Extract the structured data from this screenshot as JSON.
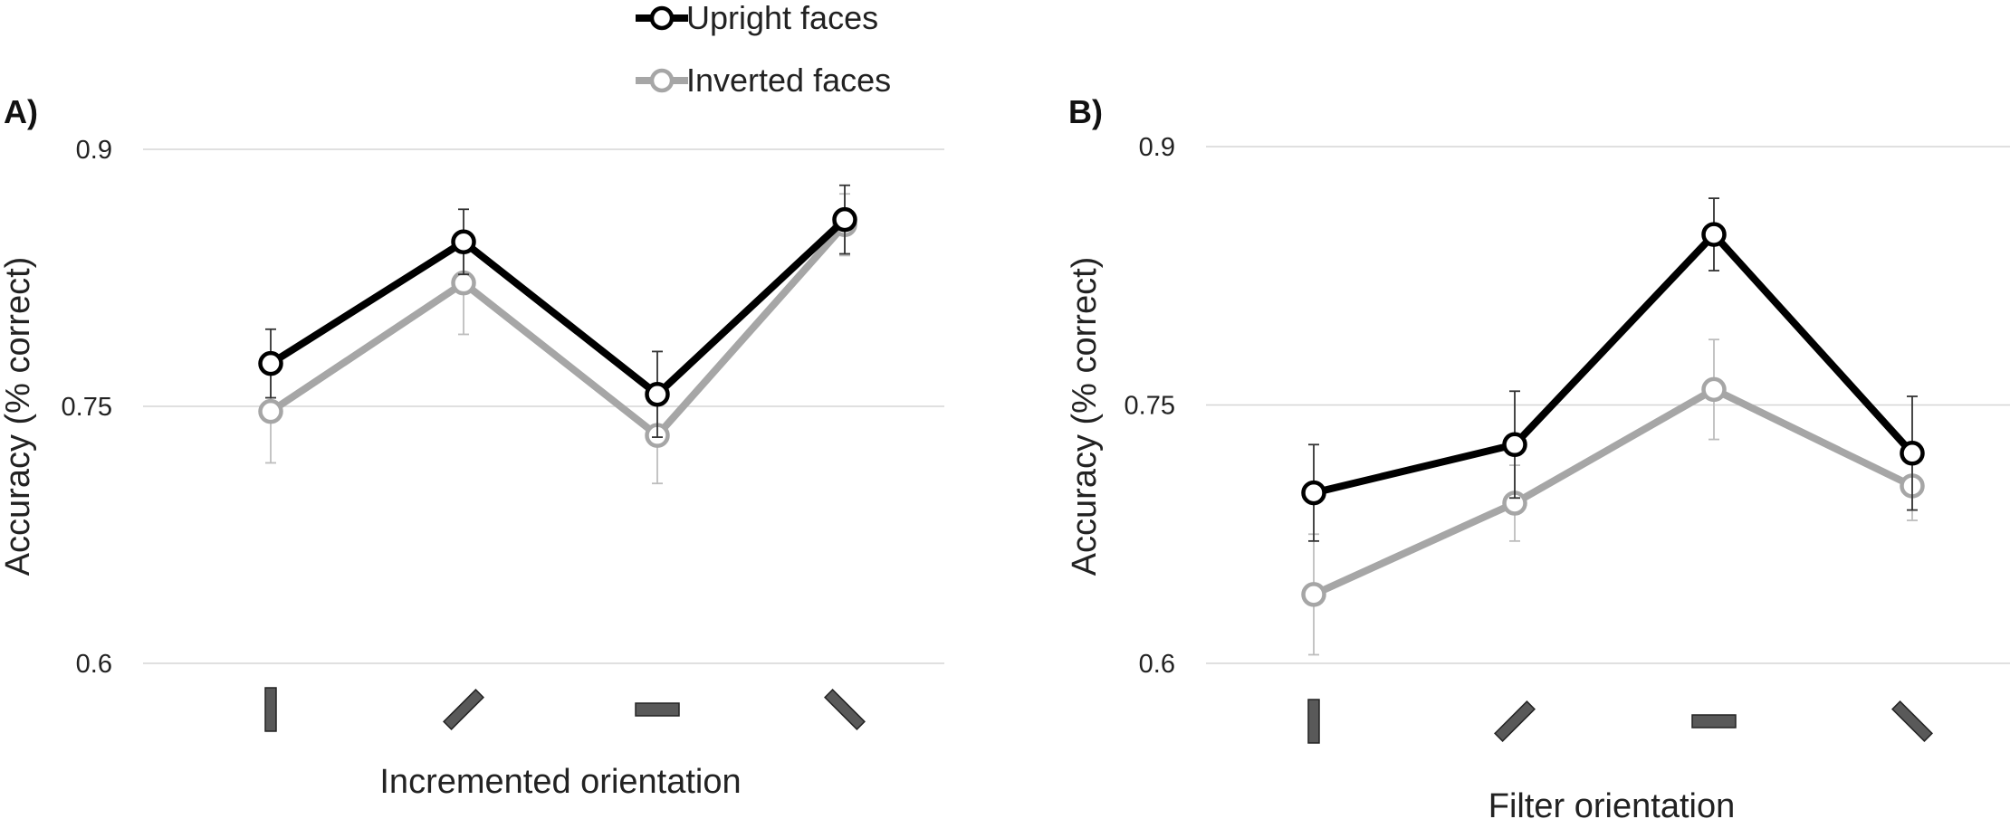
{
  "legend": {
    "items": [
      {
        "label": "Upright faces",
        "color": "#000000"
      },
      {
        "label": "Inverted faces",
        "color": "#a6a6a6"
      }
    ]
  },
  "chart_data": [
    {
      "type": "line",
      "panel_label": "A)",
      "xlabel": "Incremented orientation",
      "ylabel": "Accuracy (% correct)",
      "ylim": [
        0.6,
        0.9
      ],
      "yticks": [
        "0.6",
        "0.75",
        "0.9"
      ],
      "categories": [
        "vertical",
        "45°",
        "horizontal",
        "135°"
      ],
      "category_icons": [
        "bar-vertical-icon",
        "bar-diagonal-right-icon",
        "bar-horizontal-icon",
        "bar-diagonal-left-icon"
      ],
      "grid": true,
      "series": [
        {
          "name": "Upright faces",
          "color": "#000000",
          "values": [
            0.775,
            0.846,
            0.757,
            0.859
          ],
          "errors": [
            0.02,
            0.019,
            0.025,
            0.02
          ]
        },
        {
          "name": "Inverted faces",
          "color": "#a6a6a6",
          "values": [
            0.747,
            0.822,
            0.733,
            0.856
          ],
          "errors": [
            0.03,
            0.03,
            0.028,
            0.018
          ]
        }
      ]
    },
    {
      "type": "line",
      "panel_label": "B)",
      "xlabel": "Filter orientation",
      "ylabel": "Accuracy (% correct)",
      "ylim": [
        0.6,
        0.9
      ],
      "yticks": [
        "0.6",
        "0.75",
        "0.9"
      ],
      "categories": [
        "vertical",
        "45°",
        "horizontal",
        "135°"
      ],
      "category_icons": [
        "bar-vertical-icon",
        "bar-diagonal-right-icon",
        "bar-horizontal-icon",
        "bar-diagonal-left-icon"
      ],
      "grid": true,
      "series": [
        {
          "name": "Upright faces",
          "color": "#000000",
          "values": [
            0.699,
            0.727,
            0.849,
            0.722
          ],
          "errors": [
            0.028,
            0.031,
            0.021,
            0.033
          ]
        },
        {
          "name": "Inverted faces",
          "color": "#a6a6a6",
          "values": [
            0.64,
            0.693,
            0.759,
            0.703
          ],
          "errors": [
            0.035,
            0.022,
            0.029,
            0.02
          ]
        }
      ]
    }
  ]
}
